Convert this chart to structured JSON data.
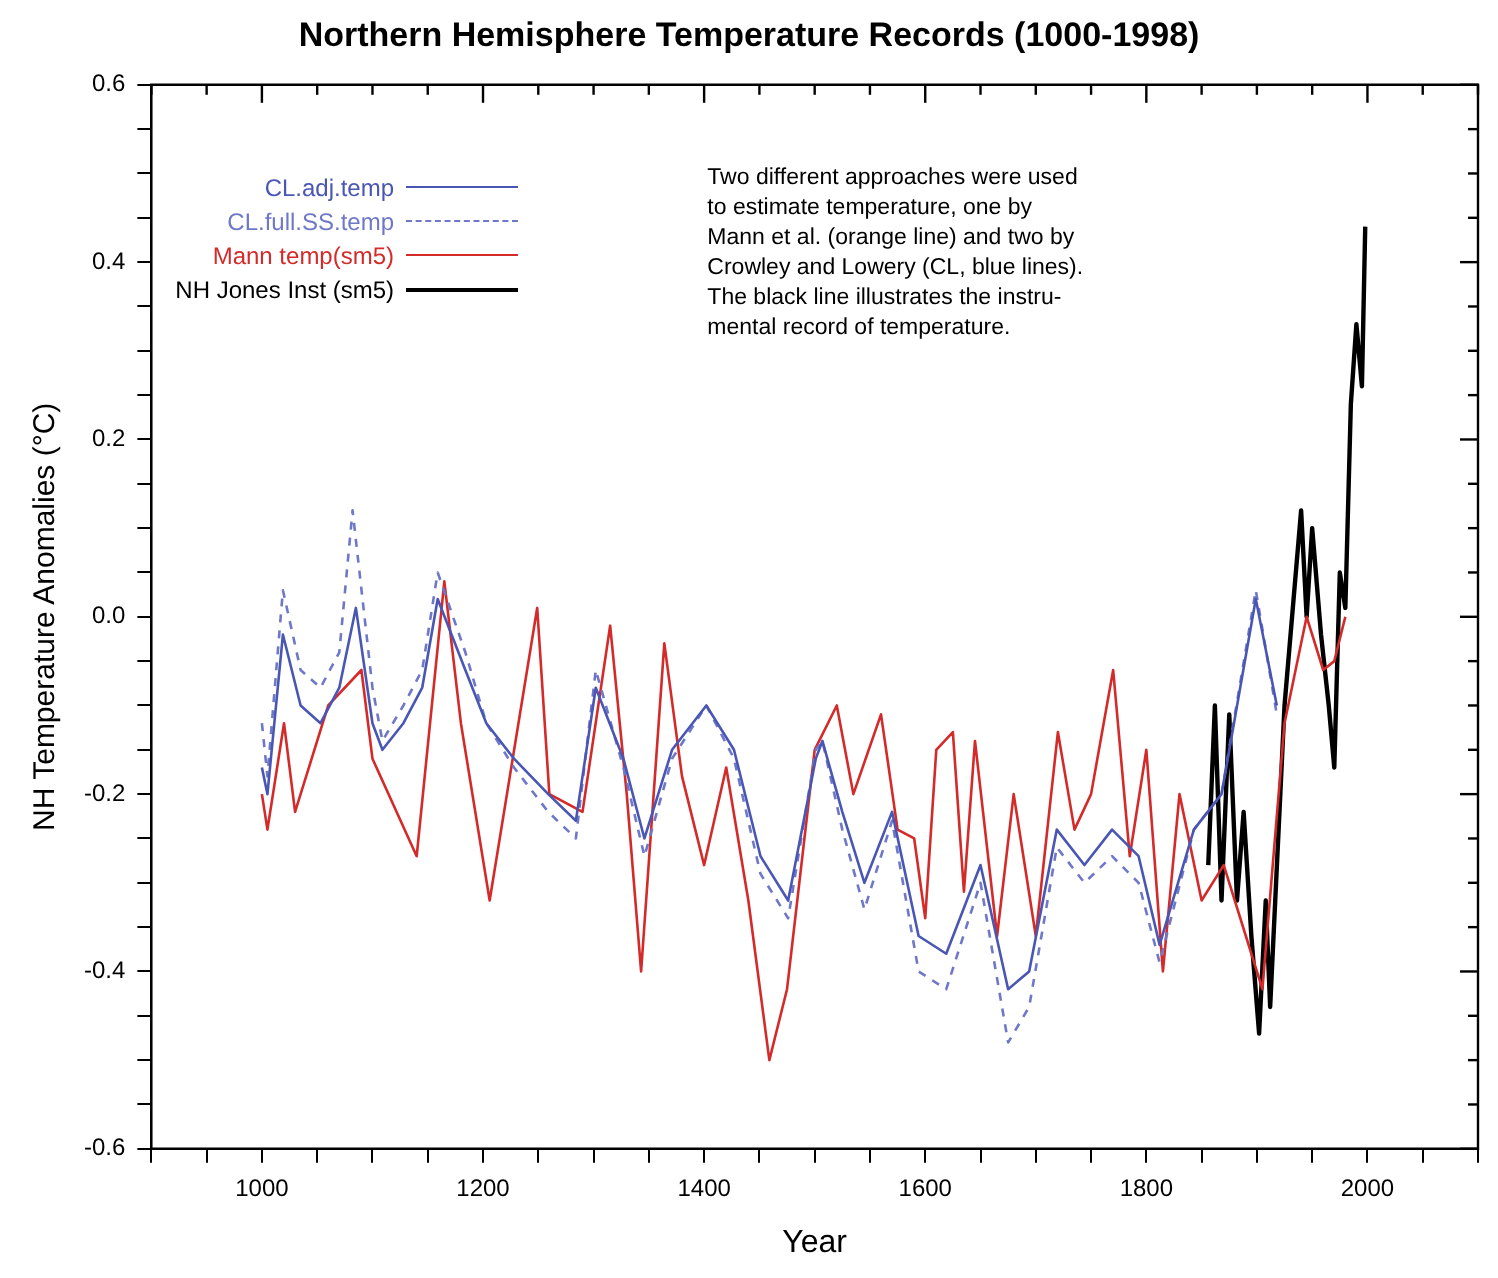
{
  "chart_data": {
    "type": "line",
    "title": "Northern Hemisphere Temperature Records (1000-1998)",
    "xlabel": "Year",
    "ylabel": "NH Temperature Anomalies (°C)",
    "xlim": [
      900,
      2100
    ],
    "ylim": [
      -0.6,
      0.6
    ],
    "xticks": [
      {
        "value": 900,
        "label": null
      },
      {
        "value": 950,
        "label": null
      },
      1000,
      {
        "value": 1050,
        "label": null
      },
      {
        "value": 1100,
        "label": null
      },
      {
        "value": 1150,
        "label": null
      },
      1200,
      {
        "value": 1250,
        "label": null
      },
      {
        "value": 1300,
        "label": null
      },
      {
        "value": 1350,
        "label": null
      },
      1400,
      {
        "value": 1450,
        "label": null
      },
      {
        "value": 1500,
        "label": null
      },
      {
        "value": 1550,
        "label": null
      },
      1600,
      {
        "value": 1650,
        "label": null
      },
      {
        "value": 1700,
        "label": null
      },
      {
        "value": 1750,
        "label": null
      },
      1800,
      {
        "value": 1850,
        "label": null
      },
      {
        "value": 1900,
        "label": null
      },
      {
        "value": 1950,
        "label": null
      },
      2000,
      {
        "value": 2050,
        "label": null
      },
      {
        "value": 2100,
        "label": null
      }
    ],
    "yticks": [
      {
        "value": -0.6,
        "label": "-0.6"
      },
      {
        "value": -0.55,
        "label": null
      },
      {
        "value": -0.5,
        "label": null
      },
      {
        "value": -0.45,
        "label": null
      },
      {
        "value": -0.4,
        "label": "-0.4"
      },
      {
        "value": -0.35,
        "label": null
      },
      {
        "value": -0.3,
        "label": null
      },
      {
        "value": -0.25,
        "label": null
      },
      {
        "value": -0.2,
        "label": "-0.2"
      },
      {
        "value": -0.15,
        "label": null
      },
      {
        "value": -0.1,
        "label": null
      },
      {
        "value": -0.05,
        "label": null
      },
      {
        "value": 0,
        "label": "0.0"
      },
      {
        "value": 0.05,
        "label": null
      },
      {
        "value": 0.1,
        "label": null
      },
      {
        "value": 0.15,
        "label": null
      },
      {
        "value": 0.2,
        "label": "0.2"
      },
      {
        "value": 0.25,
        "label": null
      },
      {
        "value": 0.3,
        "label": null
      },
      {
        "value": 0.35,
        "label": null
      },
      {
        "value": 0.4,
        "label": "0.4"
      },
      {
        "value": 0.45,
        "label": null
      },
      {
        "value": 0.5,
        "label": null
      },
      {
        "value": 0.55,
        "label": null
      },
      {
        "value": 0.6,
        "label": "0.6"
      }
    ],
    "grid": false,
    "legend": "top left",
    "marker": "none",
    "annotations": [
      "Two different approaches were used\nto estimate temperature, one by\nMann et al. (orange line) and two by\nCrowley and Lowery (CL, blue lines).\nThe black line illustrates the instru-\nmental record of temperature."
    ],
    "series": [
      {
        "name": "CL.adj.temp",
        "color": "#4a56b4",
        "line_style": "solid",
        "x": [
          1000,
          1005,
          1019,
          1035,
          1053,
          1070,
          1085,
          1100,
          1109,
          1128,
          1145,
          1159,
          1184,
          1203,
          1228,
          1259,
          1284,
          1302,
          1327,
          1346,
          1371,
          1402,
          1427,
          1451,
          1476,
          1501,
          1507,
          1525,
          1545,
          1570,
          1594,
          1619,
          1650,
          1675,
          1694,
          1719,
          1744,
          1769,
          1793,
          1812,
          1843,
          1868,
          1899,
          1918
        ],
        "values": [
          -0.17,
          -0.2,
          -0.02,
          -0.1,
          -0.12,
          -0.08,
          0.01,
          -0.12,
          -0.15,
          -0.12,
          -0.08,
          0.02,
          -0.06,
          -0.12,
          -0.16,
          -0.2,
          -0.23,
          -0.08,
          -0.16,
          -0.25,
          -0.15,
          -0.1,
          -0.15,
          -0.27,
          -0.32,
          -0.16,
          -0.14,
          -0.22,
          -0.3,
          -0.22,
          -0.36,
          -0.38,
          -0.28,
          -0.42,
          -0.4,
          -0.24,
          -0.28,
          -0.24,
          -0.27,
          -0.37,
          -0.24,
          -0.2,
          0.02,
          -0.1
        ]
      },
      {
        "name": "CL.full.SS.temp",
        "color": "#6f78c8",
        "line_style": "dashed",
        "x": [
          1000,
          1005,
          1019,
          1035,
          1053,
          1070,
          1082,
          1100,
          1109,
          1128,
          1145,
          1159,
          1184,
          1203,
          1228,
          1259,
          1284,
          1302,
          1327,
          1346,
          1371,
          1402,
          1427,
          1451,
          1476,
          1501,
          1507,
          1525,
          1545,
          1570,
          1594,
          1619,
          1650,
          1675,
          1694,
          1719,
          1744,
          1769,
          1793,
          1812,
          1843,
          1868,
          1899,
          1918
        ],
        "values": [
          -0.12,
          -0.18,
          0.03,
          -0.06,
          -0.08,
          -0.04,
          0.12,
          -0.08,
          -0.14,
          -0.1,
          -0.06,
          0.05,
          -0.04,
          -0.12,
          -0.17,
          -0.22,
          -0.25,
          -0.06,
          -0.17,
          -0.27,
          -0.16,
          -0.1,
          -0.16,
          -0.29,
          -0.34,
          -0.15,
          -0.14,
          -0.24,
          -0.33,
          -0.23,
          -0.4,
          -0.42,
          -0.3,
          -0.48,
          -0.44,
          -0.26,
          -0.3,
          -0.27,
          -0.3,
          -0.39,
          -0.24,
          -0.2,
          0.03,
          -0.11
        ]
      },
      {
        "name": "Mann temp(sm5)",
        "color": "#d42a2a",
        "line_style": "solid",
        "x": [
          1000,
          1005,
          1020,
          1030,
          1060,
          1090,
          1100,
          1140,
          1165,
          1180,
          1206,
          1249,
          1260,
          1290,
          1315,
          1330,
          1343,
          1364,
          1380,
          1400,
          1420,
          1440,
          1459,
          1475,
          1500,
          1520,
          1535,
          1560,
          1575,
          1590,
          1600,
          1610,
          1625,
          1635,
          1645,
          1665,
          1680,
          1700,
          1720,
          1735,
          1750,
          1770,
          1785,
          1800,
          1815,
          1830,
          1850,
          1870,
          1890,
          1905,
          1925,
          1945,
          1960,
          1970,
          1980
        ],
        "values": [
          -0.2,
          -0.24,
          -0.12,
          -0.22,
          -0.1,
          -0.06,
          -0.16,
          -0.27,
          0.04,
          -0.12,
          -0.32,
          0.01,
          -0.2,
          -0.22,
          -0.01,
          -0.2,
          -0.4,
          -0.03,
          -0.18,
          -0.28,
          -0.17,
          -0.32,
          -0.5,
          -0.42,
          -0.15,
          -0.1,
          -0.2,
          -0.11,
          -0.24,
          -0.25,
          -0.34,
          -0.15,
          -0.13,
          -0.31,
          -0.14,
          -0.36,
          -0.2,
          -0.36,
          -0.13,
          -0.24,
          -0.2,
          -0.06,
          -0.27,
          -0.15,
          -0.4,
          -0.2,
          -0.32,
          -0.28,
          -0.36,
          -0.42,
          -0.12,
          0.0,
          -0.06,
          -0.05,
          0.0
        ]
      },
      {
        "name": "NH  Jones Inst (sm5)",
        "color": "#000000",
        "line_style": "solid",
        "x": [
          1856,
          1862,
          1868,
          1875,
          1882,
          1888,
          1895,
          1902,
          1908,
          1912,
          1925,
          1940,
          1945,
          1950,
          1958,
          1965,
          1970,
          1975,
          1980,
          1985,
          1990,
          1995,
          1998
        ],
        "values": [
          -0.28,
          -0.1,
          -0.32,
          -0.11,
          -0.32,
          -0.22,
          -0.36,
          -0.47,
          -0.32,
          -0.44,
          -0.1,
          0.12,
          0.0,
          0.1,
          -0.02,
          -0.1,
          -0.17,
          0.05,
          0.01,
          0.24,
          0.33,
          0.26,
          0.44
        ]
      }
    ]
  }
}
